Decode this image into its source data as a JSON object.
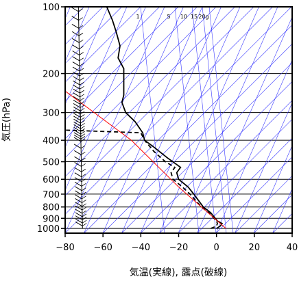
{
  "chart_data": {
    "type": "line",
    "chart_kind": "emagram (skew-T log-p aerological diagram)",
    "title": "",
    "xlabel": "気温(実線), 露点(破線)",
    "ylabel": "気圧(hPa)",
    "x_ticks": [
      -80,
      -60,
      -40,
      -20,
      0,
      20,
      40
    ],
    "y_ticks": [
      100,
      200,
      300,
      400,
      500,
      600,
      700,
      800,
      900,
      1000
    ],
    "y_scale": "log",
    "y_inverted": true,
    "xlim": [
      -80,
      40
    ],
    "ylim": [
      1050,
      100
    ],
    "grid": true,
    "mixing_ratio_labels": [
      "1",
      "5",
      "10",
      "15",
      "20g"
    ],
    "series": [
      {
        "style": "solid",
        "color": "#000000",
        "points": [
          {
            "t": 0,
            "p": 1000
          },
          {
            "t": 2,
            "p": 975
          },
          {
            "t": 3,
            "p": 950
          },
          {
            "t": 0.5,
            "p": 925
          },
          {
            "t": -3,
            "p": 850
          },
          {
            "t": -7,
            "p": 800
          },
          {
            "t": -12,
            "p": 700
          },
          {
            "t": -15,
            "p": 650
          },
          {
            "t": -20,
            "p": 600
          },
          {
            "t": -21,
            "p": 560
          },
          {
            "t": -19,
            "p": 530
          },
          {
            "t": -21,
            "p": 515
          },
          {
            "t": -26,
            "p": 480
          },
          {
            "t": -33,
            "p": 430
          },
          {
            "t": -38,
            "p": 400
          },
          {
            "t": -39,
            "p": 370
          },
          {
            "t": -43,
            "p": 330
          },
          {
            "t": -48,
            "p": 300
          },
          {
            "t": -50,
            "p": 270
          },
          {
            "t": -49,
            "p": 250
          },
          {
            "t": -49,
            "p": 210
          },
          {
            "t": -49,
            "p": 190
          },
          {
            "t": -52,
            "p": 170
          },
          {
            "t": -51,
            "p": 150
          },
          {
            "t": -53,
            "p": 130
          },
          {
            "t": -55,
            "p": 115
          },
          {
            "t": -58,
            "p": 100
          }
        ]
      },
      {
        "style": "dashed",
        "color": "#000000",
        "points": [
          {
            "t": -3,
            "p": 1000
          },
          {
            "t": 0,
            "p": 975
          },
          {
            "t": 0.5,
            "p": 950
          },
          {
            "t": 0,
            "p": 925
          },
          {
            "t": -4,
            "p": 850
          },
          {
            "t": -8,
            "p": 800
          },
          {
            "t": -14,
            "p": 700
          },
          {
            "t": -18,
            "p": 650
          },
          {
            "t": -23,
            "p": 600
          },
          {
            "t": -24,
            "p": 560
          },
          {
            "t": -22,
            "p": 530
          },
          {
            "t": -27,
            "p": 500
          },
          {
            "t": -33,
            "p": 450
          },
          {
            "t": -38,
            "p": 400
          },
          {
            "t": -40,
            "p": 370
          },
          {
            "t": -80,
            "p": 360
          }
        ]
      },
      {
        "style": "solid",
        "color": "#ff0000",
        "points": [
          {
            "t": 5,
            "p": 1000
          },
          {
            "t": -20,
            "p": 650
          },
          {
            "t": -45,
            "p": 400
          },
          {
            "t": -80,
            "p": 240
          }
        ]
      }
    ]
  }
}
